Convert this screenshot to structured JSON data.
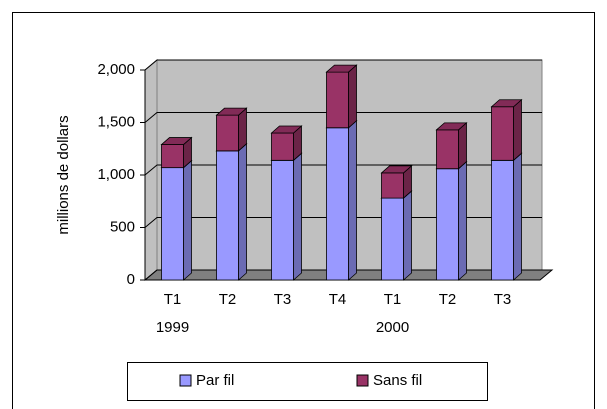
{
  "chart_data": {
    "type": "bar",
    "stacked": true,
    "y_label": "millions de dollars",
    "categories": [
      "T1",
      "T2",
      "T3",
      "T4",
      "T1",
      "T2",
      "T3"
    ],
    "x_group_labels": [
      "1999",
      null,
      null,
      null,
      "2000",
      null,
      null
    ],
    "series": [
      {
        "name": "Par fil",
        "color": "#9999ff",
        "values": [
          1070,
          1230,
          1140,
          1450,
          780,
          1060,
          1140
        ]
      },
      {
        "name": "Sans fil",
        "color": "#993366",
        "values": [
          220,
          340,
          260,
          530,
          240,
          370,
          510
        ]
      }
    ],
    "ylim": [
      0,
      2000
    ],
    "yticks": [
      0,
      500,
      {
        "value": 1000,
        "label": "1,000"
      },
      {
        "value": 1500,
        "label": "1,500"
      },
      {
        "value": 2000,
        "label": "2,000"
      }
    ],
    "grid": true,
    "legend": "bottom"
  }
}
